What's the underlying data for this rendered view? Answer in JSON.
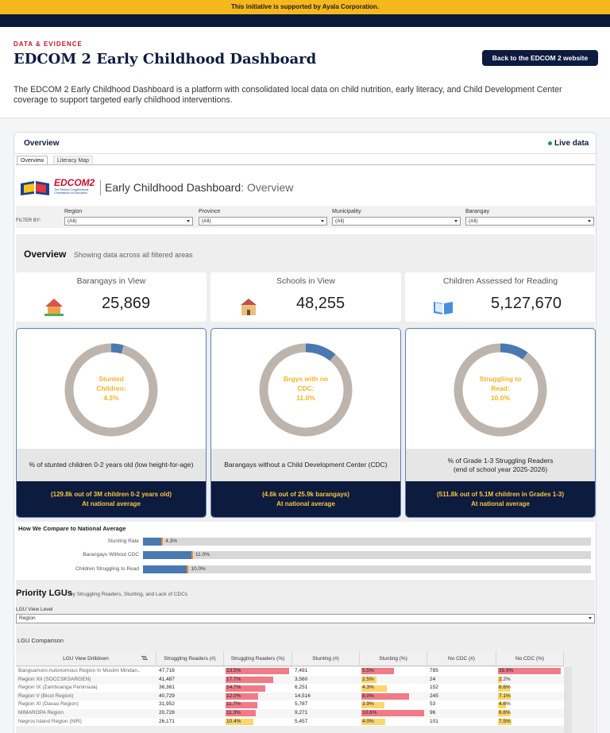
{
  "banner": "This initiative is supported by Ayala Corporation.",
  "header": {
    "eyebrow": "DATA & EVIDENCE",
    "title": "EDCOM 2 Early Childhood Dashboard",
    "button": "Back to the EDCOM 2 website",
    "description": "The EDCOM 2 Early Childhood Dashboard is a platform with consolidated local data on child nutrition, early literacy, and Child Development Center coverage to support targeted early childhood interventions."
  },
  "card": {
    "title": "Overview",
    "status": "Live data",
    "tabs": [
      "Overview",
      "Literacy Map"
    ]
  },
  "dashboard": {
    "logo": "EDCOM2",
    "logo_caption": "The Second Congressional Commission on Education",
    "title": "Early Childhood Dashboard",
    "subtitle": ": Overview"
  },
  "filters": {
    "label": "FILTER BY:",
    "items": [
      {
        "name": "Region",
        "value": "(All)"
      },
      {
        "name": "Province",
        "value": "(All)"
      },
      {
        "name": "Municipality",
        "value": "(All)"
      },
      {
        "name": "Barangay",
        "value": "(All)"
      }
    ]
  },
  "overview": {
    "title": "Overview",
    "subtitle": "Showing data across all filtered areas"
  },
  "kpis": [
    {
      "label": "Barangays in View",
      "value": "25,869"
    },
    {
      "label": "Schools in View",
      "value": "48,255"
    },
    {
      "label": "Children Assessed for Reading",
      "value": "5,127,670"
    }
  ],
  "donuts": {
    "type": "donut",
    "lim": [
      0,
      100
    ],
    "color": "#4a78b0",
    "items": [
      {
        "label": "Stunted Children:",
        "value": 4.3,
        "value_label": "4.3%",
        "description": [
          "% of stunted children 0-2 years old (low height-for-age)"
        ],
        "footer": [
          "(129.8k out of 3M children 0-2 years old)",
          "At national average"
        ]
      },
      {
        "label": "Brgys with no CDC:",
        "value": 11.0,
        "value_label": "11.0%",
        "description": [
          "Barangays without a Child Development Center (CDC)"
        ],
        "footer": [
          "(4.6k out of 25.9k barangays)",
          "At national average"
        ]
      },
      {
        "label": "Struggling to Read:",
        "value": 10.0,
        "value_label": "10.0%",
        "description": [
          "% of Grade 1-3 Struggling Readers",
          "(end of school year 2025-2026)"
        ],
        "footer": [
          "(511.8k out of 5.1M children in Grades 1-3)",
          "At national average"
        ]
      }
    ]
  },
  "compare": {
    "type": "bar",
    "title": "How We Compare to National Average",
    "xlim": [
      0,
      100
    ],
    "color": "#4a78b0",
    "rows": [
      {
        "label": "Stunting Rate",
        "value": 4.3,
        "value_label": "4.3%"
      },
      {
        "label": "Barangays Without CDC",
        "value": 11.0,
        "value_label": "11.0%"
      },
      {
        "label": "Children Struggling to Read",
        "value": 10.0,
        "value_label": "10.0%"
      }
    ]
  },
  "priority": {
    "title": "Priority LGUs",
    "subtitle": "by Struggling Readers, Stunting, and Lack of CDCs",
    "level_label": "LGU View Level",
    "level_value": "Region",
    "table_title": "LGU Comparison"
  },
  "table": {
    "columns": [
      "LGU View Drilldown",
      "Struggling Readers (#)",
      "Struggling Readers (%)",
      "Stunting (#)",
      "Stunting (%)",
      "No CDC (#)",
      "No CDC (%)"
    ],
    "rows": [
      {
        "lgu": "Bangsamoro Autonomous Region In Muslim Mindan..",
        "readers": "47,716",
        "readers_pct": {
          "value": 23.5,
          "label": "23.5%",
          "color": "#f07b86"
        },
        "stunting": "7,491",
        "stunting_pct": {
          "value": 5.5,
          "label": "5.5%",
          "color": "#f07b86"
        },
        "cdc": "785",
        "cdc_pct": {
          "value": 35.9,
          "label": "35.9%",
          "color": "#f07b86"
        }
      },
      {
        "lgu": "Region XII (SOCCSKSARGEN)",
        "readers": "41,487",
        "readers_pct": {
          "value": 17.7,
          "label": "17.7%",
          "color": "#f07b86"
        },
        "stunting": "3,560",
        "stunting_pct": {
          "value": 2.5,
          "label": "2.5%",
          "color": "#fad66b"
        },
        "cdc": "24",
        "cdc_pct": {
          "value": 2.2,
          "label": "2.2%",
          "color": "#fad66b"
        }
      },
      {
        "lgu": "Region IX (Zamboanga Peninsula)",
        "readers": "36,361",
        "readers_pct": {
          "value": 14.7,
          "label": "14.7%",
          "color": "#f07b86"
        },
        "stunting": "6,251",
        "stunting_pct": {
          "value": 4.3,
          "label": "4.3%",
          "color": "#fad66b"
        },
        "cdc": "152",
        "cdc_pct": {
          "value": 6.6,
          "label": "6.6%",
          "color": "#fad66b"
        }
      },
      {
        "lgu": "Region V (Bicol Region)",
        "readers": "40,729",
        "readers_pct": {
          "value": 12.0,
          "label": "12.0%",
          "color": "#f07b86"
        },
        "stunting": "14,516",
        "stunting_pct": {
          "value": 8.0,
          "label": "8.0%",
          "color": "#f07b86"
        },
        "cdc": "245",
        "cdc_pct": {
          "value": 7.1,
          "label": "7.1%",
          "color": "#fad66b"
        }
      },
      {
        "lgu": "Region XI (Davao Region)",
        "readers": "31,952",
        "readers_pct": {
          "value": 11.7,
          "label": "11.7%",
          "color": "#f07b86"
        },
        "stunting": "5,787",
        "stunting_pct": {
          "value": 3.9,
          "label": "3.9%",
          "color": "#fad66b"
        },
        "cdc": "53",
        "cdc_pct": {
          "value": 4.6,
          "label": "4.6%",
          "color": "#fad66b"
        }
      },
      {
        "lgu": "MIMAROPA Region",
        "readers": "20,728",
        "readers_pct": {
          "value": 11.3,
          "label": "11.3%",
          "color": "#f07b86"
        },
        "stunting": "9,271",
        "stunting_pct": {
          "value": 10.6,
          "label": "10.6%",
          "color": "#f07b86"
        },
        "cdc": "96",
        "cdc_pct": {
          "value": 6.6,
          "label": "6.6%",
          "color": "#fad66b"
        }
      },
      {
        "lgu": "Negros Island Region (NIR)",
        "readers": "26,171",
        "readers_pct": {
          "value": 10.4,
          "label": "10.4%",
          "color": "#fad66b"
        },
        "stunting": "5,457",
        "stunting_pct": {
          "value": 4.0,
          "label": "4.0%",
          "color": "#fad66b"
        },
        "cdc": "101",
        "cdc_pct": {
          "value": 7.5,
          "label": "7.5%",
          "color": "#fad66b"
        }
      }
    ]
  }
}
